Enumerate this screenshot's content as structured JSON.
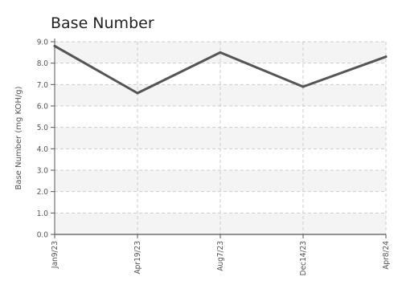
{
  "chart_data": {
    "type": "line",
    "title": "Base Number",
    "xlabel": "",
    "ylabel": "Base Number (mg KOH/g)",
    "categories": [
      "Jan9/23",
      "Apr19/23",
      "Aug7/23",
      "Dec14/23",
      "Apr8/24"
    ],
    "series": [
      {
        "values": [
          8.8,
          6.6,
          8.5,
          6.9,
          8.3
        ]
      }
    ],
    "ylim": [
      0,
      9
    ],
    "yticks": [
      "0.0",
      "1.0",
      "2.0",
      "3.0",
      "4.0",
      "5.0",
      "6.0",
      "7.0",
      "8.0",
      "9.0"
    ],
    "grid": true,
    "legend": "none",
    "colors": {
      "line": "#555555",
      "band": "#f4f4f4",
      "grid": "#cccccc",
      "axis": "#555555"
    }
  }
}
